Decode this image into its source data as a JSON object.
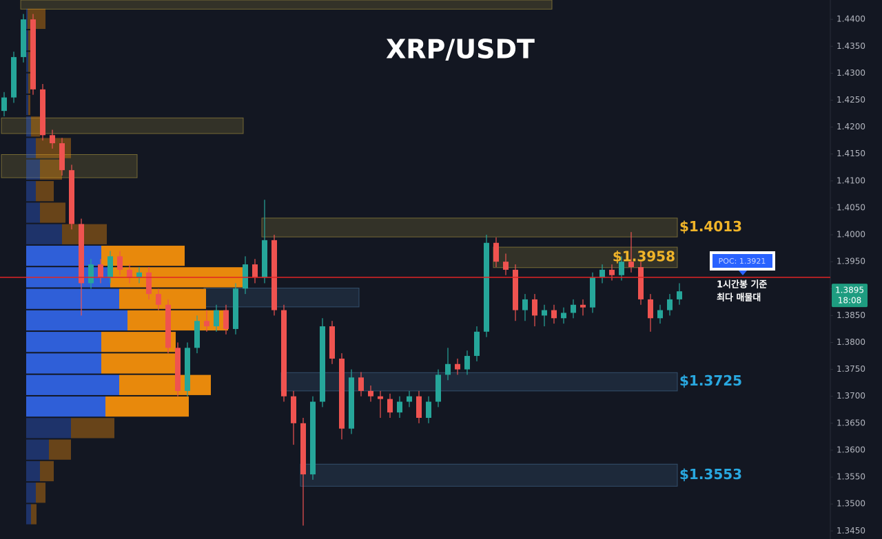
{
  "chart_data": {
    "type": "candlestick",
    "title": "XRP/USDT",
    "ylim": [
      1.3435,
      1.4436
    ],
    "yticks": [
      {
        "value": 1.345,
        "label": "1.3450"
      },
      {
        "value": 1.35,
        "label": "1.3500"
      },
      {
        "value": 1.355,
        "label": "1.3550"
      },
      {
        "value": 1.36,
        "label": "1.3600"
      },
      {
        "value": 1.365,
        "label": "1.3650"
      },
      {
        "value": 1.37,
        "label": "1.3700"
      },
      {
        "value": 1.375,
        "label": "1.3750"
      },
      {
        "value": 1.38,
        "label": "1.3800"
      },
      {
        "value": 1.385,
        "label": "1.3850"
      },
      {
        "value": 1.39,
        "label": "1.3900"
      },
      {
        "value": 1.395,
        "label": "1.3950"
      },
      {
        "value": 1.4,
        "label": "1.4000"
      },
      {
        "value": 1.405,
        "label": "1.4050"
      },
      {
        "value": 1.41,
        "label": "1.4100"
      },
      {
        "value": 1.415,
        "label": "1.4150"
      },
      {
        "value": 1.42,
        "label": "1.4200"
      },
      {
        "value": 1.425,
        "label": "1.4250"
      },
      {
        "value": 1.43,
        "label": "1.4300"
      },
      {
        "value": 1.435,
        "label": "1.4350"
      },
      {
        "value": 1.44,
        "label": "1.4400"
      }
    ],
    "up_color": "#26a69a",
    "down_color": "#ef5350",
    "candles": [
      [
        1.423,
        1.4265,
        1.422,
        1.4255
      ],
      [
        1.4255,
        1.434,
        1.4245,
        1.433
      ],
      [
        1.433,
        1.441,
        1.432,
        1.44
      ],
      [
        1.44,
        1.441,
        1.426,
        1.427
      ],
      [
        1.427,
        1.428,
        1.4175,
        1.4185
      ],
      [
        1.4185,
        1.4195,
        1.416,
        1.417
      ],
      [
        1.417,
        1.418,
        1.411,
        1.412
      ],
      [
        1.412,
        1.413,
        1.401,
        1.402
      ],
      [
        1.402,
        1.403,
        1.385,
        1.391
      ],
      [
        1.391,
        1.3955,
        1.39,
        1.3945
      ],
      [
        1.3945,
        1.3955,
        1.391,
        1.392
      ],
      [
        1.392,
        1.397,
        1.391,
        1.396
      ],
      [
        1.396,
        1.397,
        1.3925,
        1.3935
      ],
      [
        1.3935,
        1.3945,
        1.391,
        1.392
      ],
      [
        1.392,
        1.394,
        1.391,
        1.393
      ],
      [
        1.393,
        1.394,
        1.388,
        1.389
      ],
      [
        1.389,
        1.39,
        1.386,
        1.387
      ],
      [
        1.387,
        1.388,
        1.378,
        1.379
      ],
      [
        1.379,
        1.38,
        1.37,
        1.371
      ],
      [
        1.371,
        1.38,
        1.37,
        1.379
      ],
      [
        1.379,
        1.385,
        1.378,
        1.384
      ],
      [
        1.384,
        1.386,
        1.382,
        1.383
      ],
      [
        1.383,
        1.387,
        1.382,
        1.386
      ],
      [
        1.386,
        1.387,
        1.3815,
        1.3825
      ],
      [
        1.3825,
        1.391,
        1.3815,
        1.39
      ],
      [
        1.39,
        1.396,
        1.389,
        1.3945
      ],
      [
        1.3945,
        1.3955,
        1.391,
        1.392
      ],
      [
        1.392,
        1.4065,
        1.391,
        1.399
      ],
      [
        1.399,
        1.4,
        1.385,
        1.386
      ],
      [
        1.386,
        1.387,
        1.369,
        1.37
      ],
      [
        1.37,
        1.371,
        1.361,
        1.365
      ],
      [
        1.365,
        1.366,
        1.346,
        1.3555
      ],
      [
        1.3555,
        1.37,
        1.3545,
        1.369
      ],
      [
        1.369,
        1.3845,
        1.368,
        1.383
      ],
      [
        1.383,
        1.384,
        1.376,
        1.377
      ],
      [
        1.377,
        1.378,
        1.362,
        1.364
      ],
      [
        1.364,
        1.375,
        1.363,
        1.3735
      ],
      [
        1.3735,
        1.3745,
        1.37,
        1.371
      ],
      [
        1.371,
        1.372,
        1.369,
        1.37
      ],
      [
        1.37,
        1.371,
        1.366,
        1.3695
      ],
      [
        1.3695,
        1.3705,
        1.366,
        1.367
      ],
      [
        1.367,
        1.37,
        1.366,
        1.369
      ],
      [
        1.369,
        1.371,
        1.368,
        1.37
      ],
      [
        1.37,
        1.371,
        1.365,
        1.366
      ],
      [
        1.366,
        1.37,
        1.365,
        1.369
      ],
      [
        1.369,
        1.375,
        1.368,
        1.374
      ],
      [
        1.374,
        1.379,
        1.373,
        1.376
      ],
      [
        1.376,
        1.377,
        1.374,
        1.375
      ],
      [
        1.375,
        1.3785,
        1.374,
        1.3775
      ],
      [
        1.3775,
        1.383,
        1.3765,
        1.382
      ],
      [
        1.382,
        1.4,
        1.381,
        1.3985
      ],
      [
        1.3985,
        1.3995,
        1.394,
        1.395
      ],
      [
        1.395,
        1.3965,
        1.3925,
        1.3935
      ],
      [
        1.3935,
        1.3945,
        1.384,
        1.386
      ],
      [
        1.386,
        1.389,
        1.384,
        1.388
      ],
      [
        1.388,
        1.389,
        1.383,
        1.385
      ],
      [
        1.385,
        1.387,
        1.383,
        1.386
      ],
      [
        1.386,
        1.387,
        1.3835,
        1.3845
      ],
      [
        1.3845,
        1.3865,
        1.3835,
        1.3855
      ],
      [
        1.3855,
        1.388,
        1.3845,
        1.387
      ],
      [
        1.387,
        1.388,
        1.385,
        1.3865
      ],
      [
        1.3865,
        1.393,
        1.3855,
        1.392
      ],
      [
        1.392,
        1.3945,
        1.391,
        1.3935
      ],
      [
        1.3935,
        1.3945,
        1.3915,
        1.3925
      ],
      [
        1.3925,
        1.396,
        1.3915,
        1.395
      ],
      [
        1.395,
        1.4005,
        1.393,
        1.394
      ],
      [
        1.394,
        1.395,
        1.387,
        1.388
      ],
      [
        1.388,
        1.389,
        1.382,
        1.3845
      ],
      [
        1.3845,
        1.387,
        1.3835,
        1.386
      ],
      [
        1.386,
        1.389,
        1.385,
        1.388
      ],
      [
        1.388,
        1.391,
        1.387,
        1.3895
      ]
    ],
    "zones": [
      {
        "low": 1.3996,
        "high": 1.4031,
        "from": 27,
        "to": 70,
        "color": "#8a7a3a",
        "label": "$1.4013",
        "label_color": "#f0b429"
      },
      {
        "low": 1.3939,
        "high": 1.3977,
        "from": 51,
        "to": 70,
        "color": "#8a7a3a",
        "label": "$1.3958",
        "label_color": "#f0b429"
      },
      {
        "low": 1.371,
        "high": 1.3744,
        "from": 29,
        "to": 70,
        "color": "#3a5a7a",
        "label": "$1.3725",
        "label_color": "#29a8e0"
      },
      {
        "low": 1.3533,
        "high": 1.3574,
        "from": 31,
        "to": 70,
        "color": "#3a5a7a",
        "label": "$1.3553",
        "label_color": "#29a8e0"
      },
      {
        "low": 1.4419,
        "high": 1.4436,
        "from": 2,
        "to": 57,
        "color": "#8a7a3a"
      },
      {
        "low": 1.4188,
        "high": 1.4217,
        "from": 0,
        "to": 25,
        "color": "#8a7a3a"
      },
      {
        "low": 1.4106,
        "high": 1.4149,
        "from": 0,
        "to": 14,
        "color": "#8a7a3a"
      },
      {
        "low": 1.3866,
        "high": 1.3901,
        "from": 21,
        "to": 37,
        "color": "#3a5a7a"
      }
    ],
    "volume_profile": {
      "buy_color": "#2f5fd8",
      "sell_color": "#e8890c",
      "value_area": {
        "low": 1.3661,
        "high": 1.3981
      },
      "price": [
        1.4401,
        1.4361,
        1.4321,
        1.4281,
        1.4241,
        1.4201,
        1.4161,
        1.4121,
        1.4081,
        1.4041,
        1.4001,
        1.3961,
        1.3921,
        1.3881,
        1.3841,
        1.3801,
        1.3761,
        1.3721,
        1.3681,
        1.3641,
        1.3601,
        1.3561,
        1.3521,
        1.3481
      ],
      "buy": [
        2,
        3,
        3,
        3,
        3,
        7,
        14,
        20,
        14,
        20,
        52,
        109,
        122,
        135,
        147,
        109,
        109,
        135,
        115,
        65,
        33,
        20,
        14,
        7
      ],
      "sell": [
        26,
        3,
        3,
        3,
        3,
        13,
        51,
        32,
        26,
        37,
        65,
        121,
        197,
        126,
        146,
        108,
        108,
        133,
        121,
        63,
        32,
        20,
        14,
        8
      ]
    },
    "poc": {
      "value": 1.3921,
      "label": "POC: 1.3921",
      "note_lines": [
        "1시간봉 기준",
        "최다 매물대"
      ]
    },
    "last_price": {
      "value": 1.3895,
      "label": "1.3895",
      "countdown": "18:08"
    }
  }
}
